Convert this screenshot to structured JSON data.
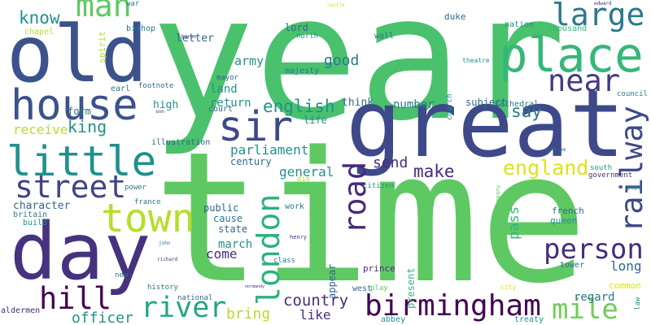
{
  "words": [
    "year",
    "time",
    "great",
    "old",
    "day",
    "place",
    "house",
    "little",
    "sir",
    "town",
    "street",
    "man",
    "large",
    "near",
    "railway",
    "london",
    "road",
    "person",
    "mile",
    "birmingham",
    "hill",
    "river",
    "england",
    "make",
    "king",
    "english",
    "parliament",
    "say",
    "know",
    "good",
    "send",
    "general",
    "country",
    "bring",
    "officer",
    "like",
    "come",
    "march",
    "cause",
    "state",
    "public",
    "army",
    "land",
    "return",
    "letter",
    "lord",
    "north",
    "receive",
    "character",
    "britain",
    "build",
    "form",
    "high",
    "court",
    "number",
    "think",
    "subject",
    "life",
    "century",
    "long",
    "regard",
    "common",
    "pass",
    "french",
    "queen",
    "appear",
    "present",
    "prince",
    "west",
    "abbey",
    "treaty",
    "duke",
    "nation",
    "thousand",
    "wall",
    "majesty",
    "mayor",
    "bishop",
    "chapel",
    "spirit",
    "war",
    "earl",
    "footnote",
    "cathedral",
    "council",
    "south",
    "government",
    "pope",
    "church",
    "theatre",
    "france",
    "power",
    "illustration",
    "work",
    "die",
    "citizen",
    "henry",
    "class",
    "building",
    "company",
    "history",
    "national",
    "new",
    "richard",
    "john",
    "normandy",
    "play",
    "city",
    "tower",
    "law",
    "aldermen",
    "baron",
    "edward",
    "castle",
    "william",
    "son"
  ]
}
